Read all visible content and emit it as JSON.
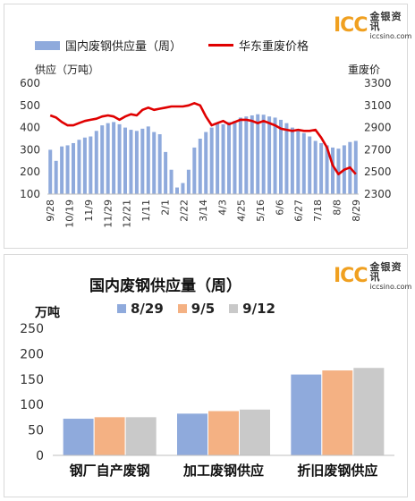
{
  "logo": {
    "mark": "ICC",
    "cn": "金银资讯",
    "url": "iccsino.com"
  },
  "chart_data": [
    {
      "type": "bar+line",
      "title": "",
      "legend": [
        "国内废钢供应量（周）",
        "华东重废价格"
      ],
      "y_left_label": "供应（万吨）",
      "y_right_label": "重废价",
      "y_left_range": [
        100,
        600
      ],
      "y_left_ticks": [
        "100",
        "200",
        "300",
        "400",
        "500",
        "600"
      ],
      "y_right_range": [
        2300,
        3300
      ],
      "y_right_ticks": [
        "2300",
        "2500",
        "2700",
        "2900",
        "3100",
        "3300"
      ],
      "x_tick_labels": [
        "9/28",
        "10/19",
        "11/9",
        "11/29",
        "12/21",
        "1/11",
        "2/1",
        "2/22",
        "3/14",
        "4/3",
        "4/25",
        "5/16",
        "6/6",
        "6/27",
        "7/18",
        "8/8",
        "8/29"
      ],
      "bar_series": {
        "name": "国内废钢供应量（周）",
        "color": "#8faadc",
        "values": [
          300,
          250,
          315,
          320,
          330,
          345,
          355,
          360,
          385,
          410,
          420,
          425,
          415,
          400,
          390,
          385,
          395,
          405,
          380,
          370,
          290,
          210,
          130,
          150,
          210,
          310,
          350,
          380,
          400,
          420,
          415,
          425,
          430,
          445,
          450,
          455,
          460,
          458,
          450,
          445,
          435,
          420,
          400,
          390,
          375,
          360,
          340,
          330,
          320,
          310,
          305,
          320,
          335,
          340
        ]
      },
      "line_series": {
        "name": "华东重废价格",
        "color": "#e00000",
        "values": [
          3010,
          2990,
          2950,
          2920,
          2920,
          2940,
          2960,
          2970,
          2980,
          3000,
          3010,
          3000,
          2970,
          3000,
          3020,
          3010,
          3060,
          3080,
          3060,
          3070,
          3080,
          3090,
          3090,
          3090,
          3100,
          3120,
          3100,
          3000,
          2920,
          2940,
          2960,
          2930,
          2950,
          2970,
          2970,
          2960,
          2940,
          2960,
          2940,
          2920,
          2890,
          2880,
          2870,
          2880,
          2870,
          2870,
          2880,
          2810,
          2720,
          2560,
          2480,
          2520,
          2540,
          2480
        ]
      }
    },
    {
      "type": "bar",
      "title": "国内废钢供应量（周）",
      "unit": "万吨",
      "categories": [
        "钢厂自产废钢",
        "加工废钢供应",
        "折旧废钢供应"
      ],
      "ylim": [
        0,
        250
      ],
      "y_ticks": [
        "0",
        "50",
        "100",
        "150",
        "200",
        "250"
      ],
      "series": [
        {
          "name": "8/29",
          "color": "#8faadc",
          "values": [
            73,
            83,
            160
          ]
        },
        {
          "name": "9/5",
          "color": "#f4b183",
          "values": [
            76,
            88,
            168
          ]
        },
        {
          "name": "9/12",
          "color": "#c9c9c9",
          "values": [
            76,
            91,
            173
          ]
        }
      ]
    }
  ]
}
